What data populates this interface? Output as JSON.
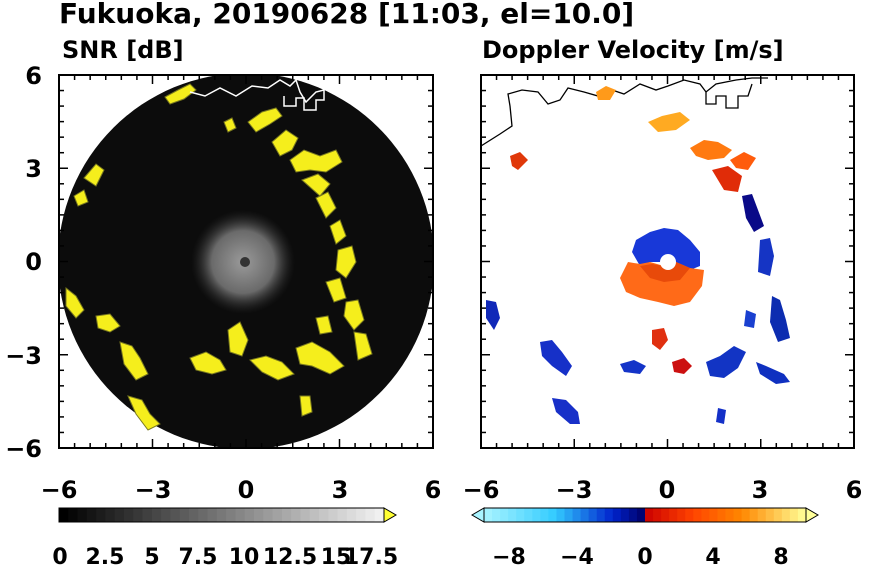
{
  "title": "Fukuoka, 20190628 [11:03, el=10.0]",
  "chart_data": [
    {
      "type": "heatmap",
      "title": "SNR [dB]",
      "xlim": [
        -6,
        6
      ],
      "ylim": [
        -6,
        6
      ],
      "x_ticks": [
        "−6",
        "−3",
        "0",
        "3",
        "6"
      ],
      "y_ticks": [
        "6",
        "3",
        "0",
        "−3",
        "−6"
      ],
      "colorbar": {
        "ticks": [
          "0",
          "2.5",
          "5",
          "7.5",
          "10",
          "12.5",
          "15",
          "17.5"
        ],
        "range": [
          0,
          17.5
        ],
        "scheme": "grayscale-to-white-with-yellow-extension",
        "colors": [
          "#000000",
          "#ffffff",
          "#ffff33"
        ]
      }
    },
    {
      "type": "heatmap",
      "title": "Doppler Velocity [m/s]",
      "xlim": [
        -6,
        6
      ],
      "ylim": [
        -6,
        6
      ],
      "x_ticks": [
        "−6",
        "−3",
        "0",
        "3",
        "6"
      ],
      "y_ticks": [],
      "colorbar": {
        "ticks": [
          "−8",
          "−4",
          "0",
          "4",
          "8"
        ],
        "range": [
          -10,
          10
        ],
        "scheme": "cyan-blue-navy-red-orange-yellow",
        "colors": [
          "#aaf4ff",
          "#0022cc",
          "#000066",
          "#cc0000",
          "#ff8800",
          "#ffff99"
        ]
      }
    }
  ]
}
